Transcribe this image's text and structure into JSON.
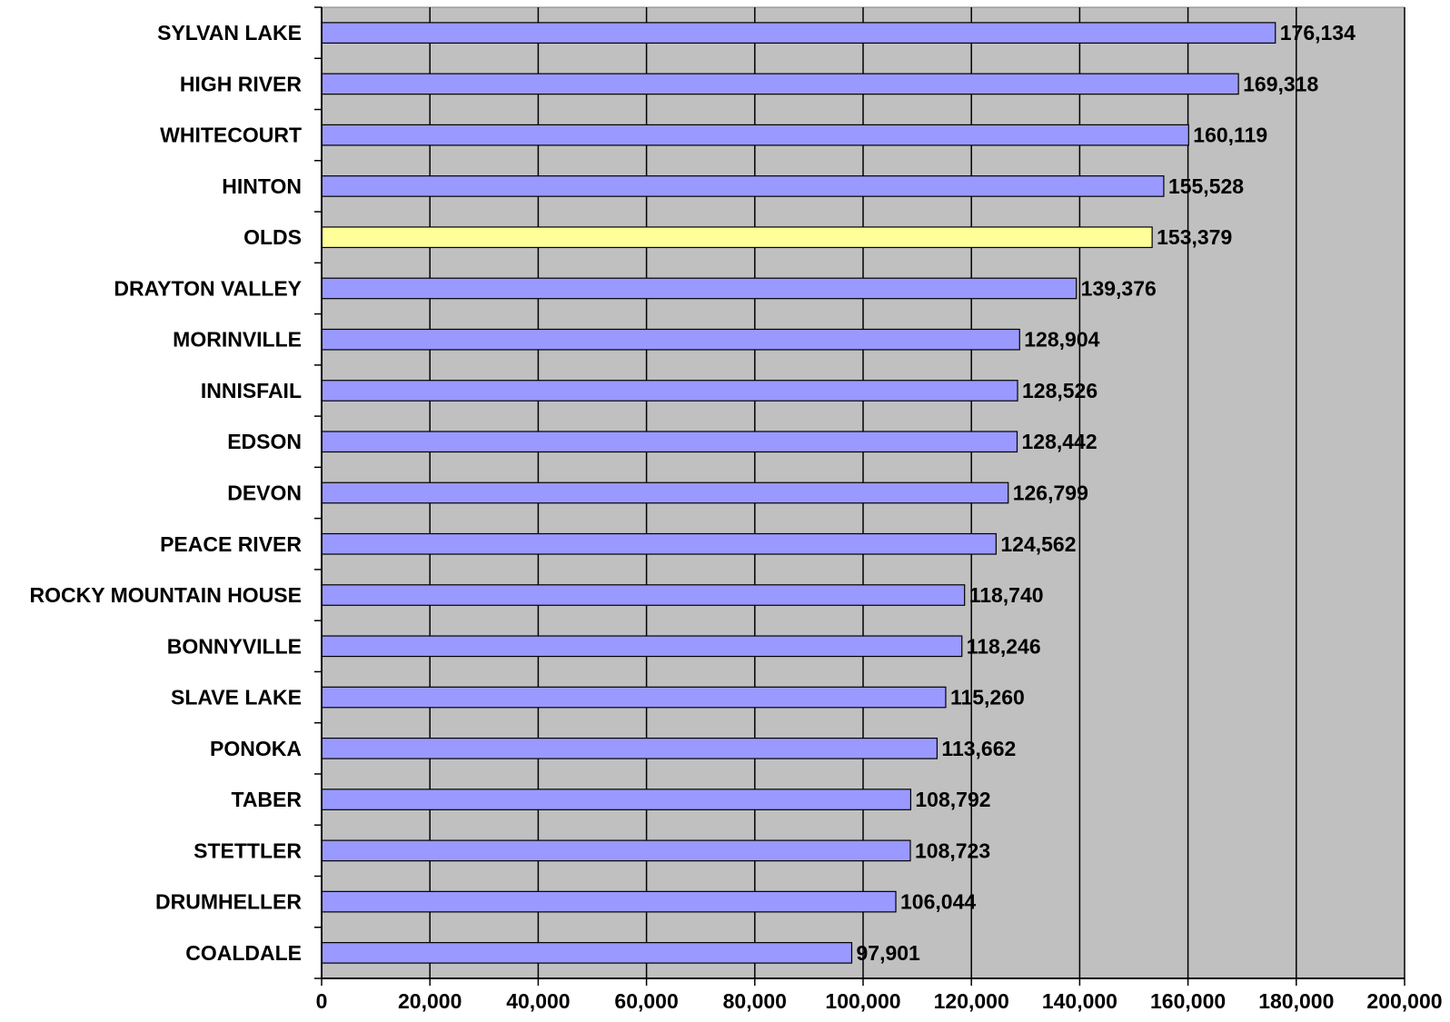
{
  "chart_data": {
    "type": "bar",
    "orientation": "horizontal",
    "categories": [
      "SYLVAN LAKE",
      "HIGH RIVER",
      "WHITECOURT",
      "HINTON",
      "OLDS",
      "DRAYTON VALLEY",
      "MORINVILLE",
      "INNISFAIL",
      "EDSON",
      "DEVON",
      "PEACE RIVER",
      "ROCKY MOUNTAIN HOUSE",
      "BONNYVILLE",
      "SLAVE LAKE",
      "PONOKA",
      "TABER",
      "STETTLER",
      "DRUMHELLER",
      "COALDALE"
    ],
    "values": [
      176134,
      169318,
      160119,
      155528,
      153379,
      139376,
      128904,
      128526,
      128442,
      126799,
      124562,
      118740,
      118246,
      115260,
      113662,
      108792,
      108723,
      106044,
      97901
    ],
    "value_labels": [
      "176,134",
      "169,318",
      "160,119",
      "155,528",
      "153,379",
      "139,376",
      "128,904",
      "128,526",
      "128,442",
      "126,799",
      "124,562",
      "118,740",
      "118,246",
      "115,260",
      "113,662",
      "108,792",
      "108,723",
      "106,044",
      "97,901"
    ],
    "highlight_category": "OLDS",
    "xlim": [
      0,
      200000
    ],
    "x_ticks": [
      0,
      20000,
      40000,
      60000,
      80000,
      100000,
      120000,
      140000,
      160000,
      180000,
      200000
    ],
    "x_tick_labels": [
      "0",
      "20,000",
      "40,000",
      "60,000",
      "80,000",
      "100,000",
      "120,000",
      "140,000",
      "160,000",
      "180,000",
      "200,000"
    ],
    "grid": "vertical",
    "title": "",
    "xlabel": "",
    "ylabel": "",
    "colors": {
      "bar": "#9999ff",
      "highlight_bar": "#ffff99",
      "plot_background": "#c0c0c0",
      "gridline": "#000000",
      "bar_border": "#000000"
    }
  }
}
